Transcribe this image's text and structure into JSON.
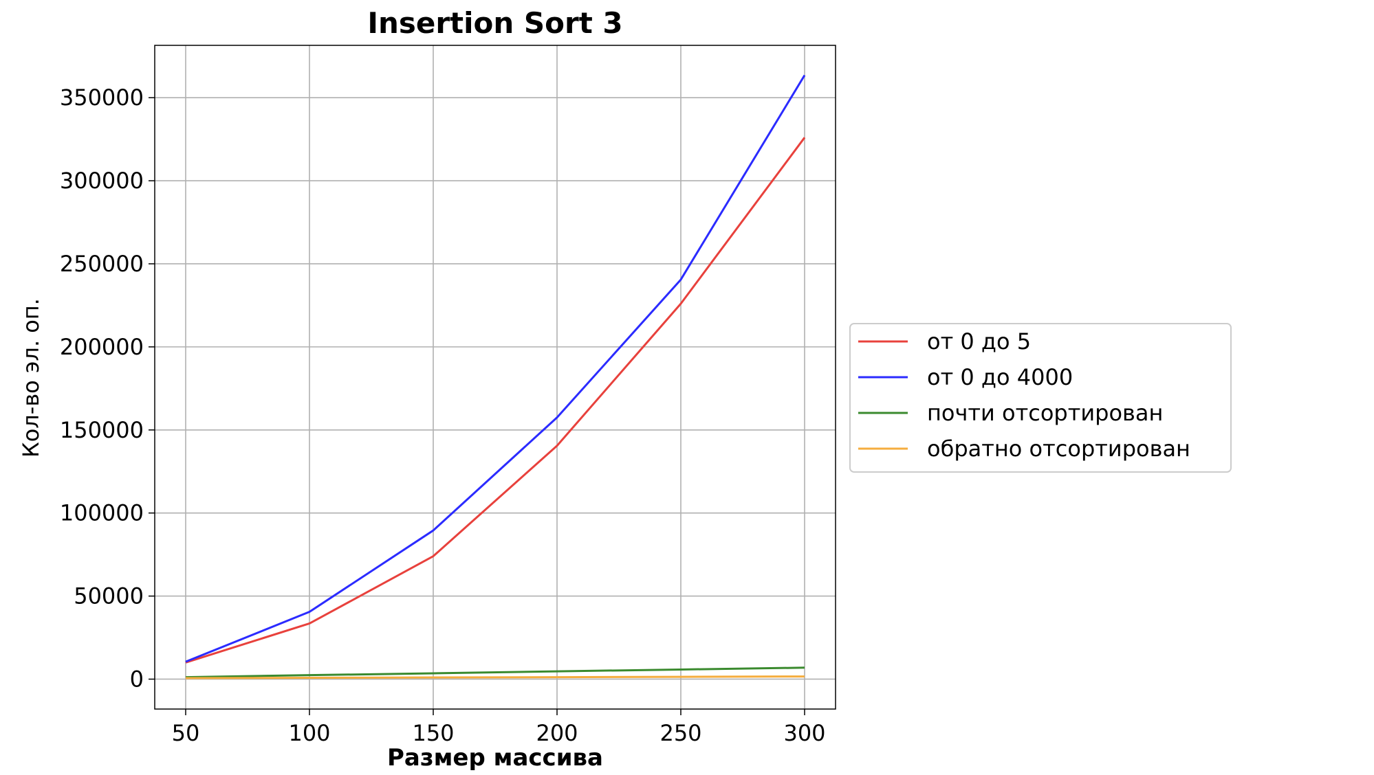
{
  "chart_data": {
    "type": "line",
    "title": "Insertion Sort 3",
    "xlabel": "Размер массива",
    "ylabel": "Кол-во эл. оп.",
    "x": [
      50,
      100,
      150,
      200,
      250,
      300
    ],
    "xlim": [
      37.5,
      312.5
    ],
    "ylim": [
      -18000,
      381500
    ],
    "xticks": [
      50,
      100,
      150,
      200,
      250,
      300
    ],
    "yticks": [
      0,
      50000,
      100000,
      150000,
      200000,
      250000,
      300000,
      350000
    ],
    "grid": true,
    "legend_position": "center-right outside plot",
    "series": [
      {
        "name": "от 0 до 5",
        "color": "#e8413c",
        "values": [
          10000,
          33500,
          74000,
          140500,
          226000,
          326000
        ]
      },
      {
        "name": "от 0 до 4000",
        "color": "#2b2bff",
        "values": [
          10500,
          40500,
          89500,
          157500,
          240500,
          363500
        ]
      },
      {
        "name": "почти отсортирован",
        "color": "#3a8a2e",
        "values": [
          1200,
          2400,
          3500,
          4700,
          5800,
          6900
        ]
      },
      {
        "name": "обратно отсортирован",
        "color": "#f5ad3e",
        "values": [
          600,
          800,
          1000,
          1200,
          1400,
          1600
        ]
      }
    ]
  }
}
